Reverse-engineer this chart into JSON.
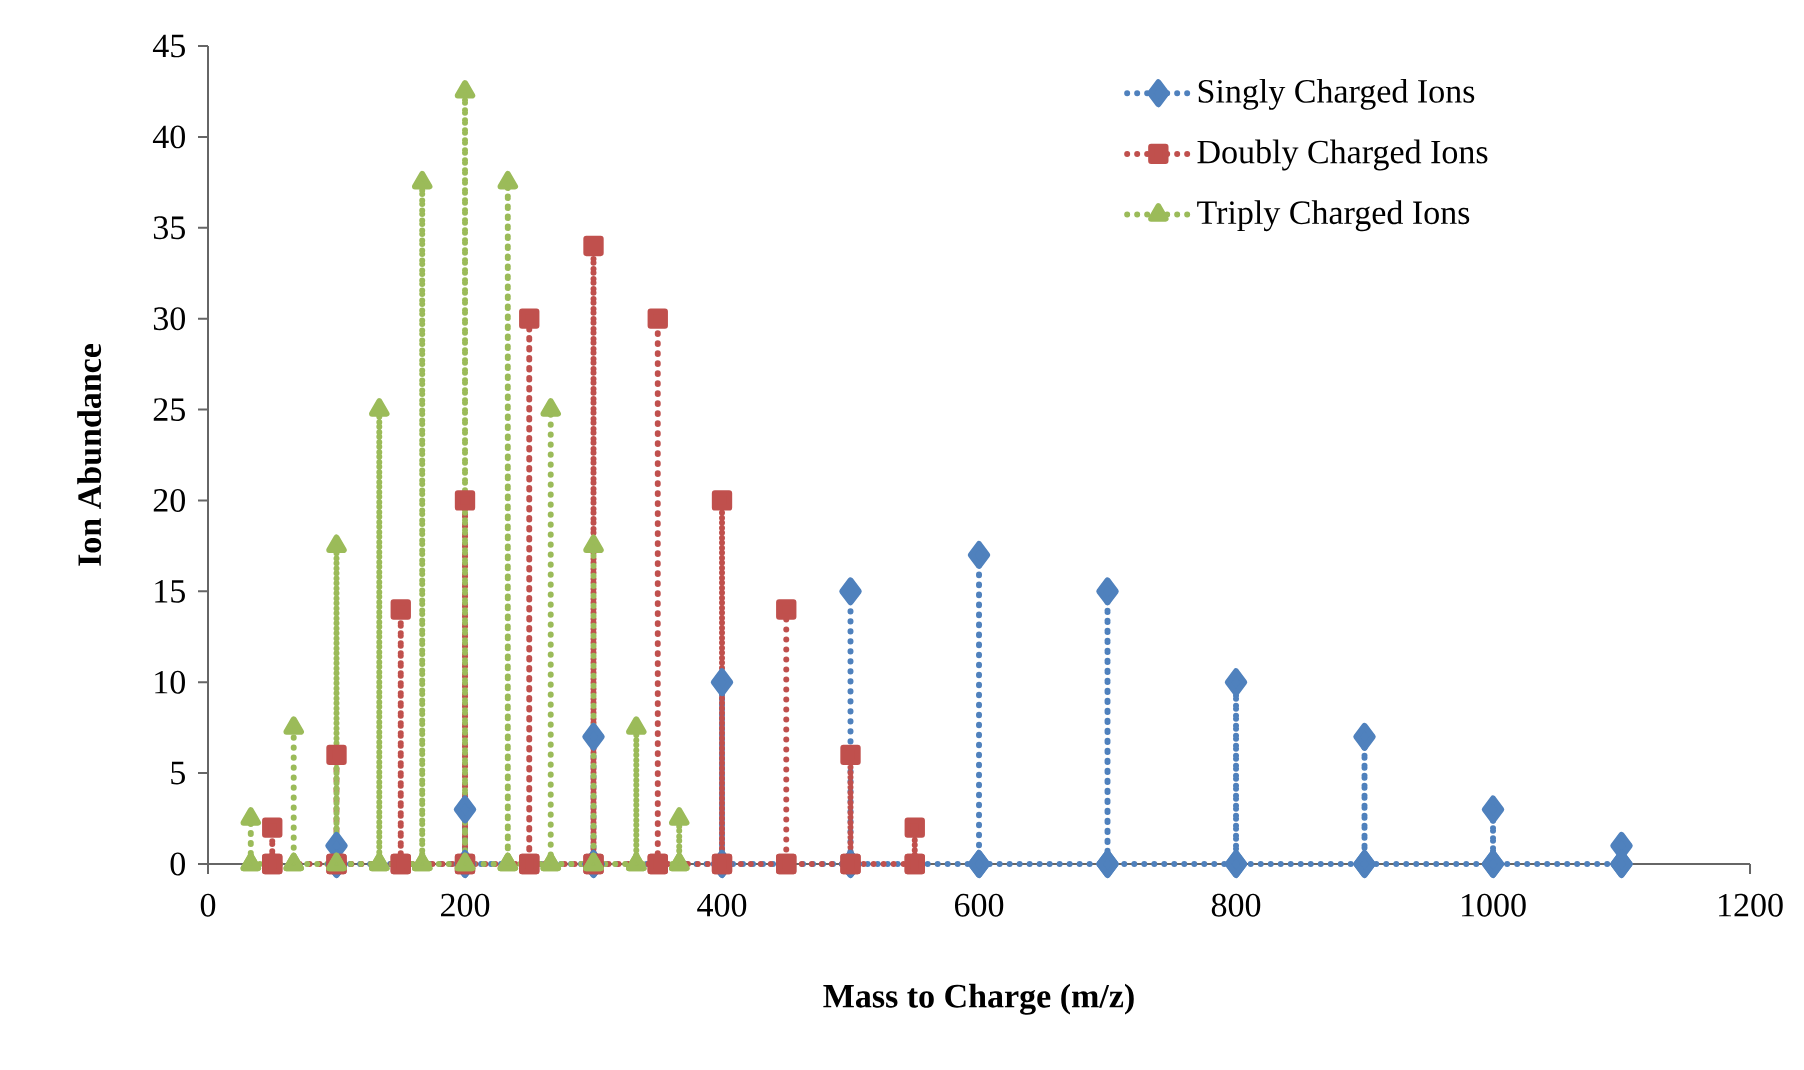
{
  "chart_data": {
    "type": "line",
    "xlabel": "Mass to Charge (m/z)",
    "ylabel": "Ion Abundance",
    "xlim": [
      0,
      1200
    ],
    "xticks": [
      0,
      200,
      400,
      600,
      800,
      1000,
      1200
    ],
    "ylim": [
      0,
      45
    ],
    "yticks": [
      0,
      5,
      10,
      15,
      20,
      25,
      30,
      35,
      40,
      45
    ],
    "grid": false,
    "legend": "top right",
    "line_style": "dotted",
    "series": [
      {
        "name": "Singly Charged Ions",
        "color": "#4f81bd",
        "marker": "diamond",
        "x": [
          100,
          100,
          100,
          200,
          200,
          200,
          300,
          300,
          300,
          400,
          400,
          400,
          500,
          500,
          500,
          600,
          600,
          600,
          700,
          700,
          700,
          800,
          800,
          800,
          900,
          900,
          900,
          1000,
          1000,
          1000,
          1100,
          1100,
          1100
        ],
        "values": [
          0,
          1,
          0,
          0,
          3,
          0,
          0,
          7,
          0,
          0,
          10,
          0,
          0,
          15,
          0,
          0,
          17,
          0,
          0,
          15,
          0,
          0,
          10,
          0,
          0,
          7,
          0,
          0,
          3,
          0,
          0,
          1,
          0
        ]
      },
      {
        "name": "Doubly Charged Ions",
        "color": "#c0504d",
        "marker": "square",
        "x": [
          50,
          50,
          50,
          100,
          100,
          100,
          150,
          150,
          150,
          200,
          200,
          200,
          250,
          250,
          250,
          300,
          300,
          300,
          350,
          350,
          350,
          400,
          400,
          400,
          450,
          450,
          450,
          500,
          500,
          500,
          550,
          550,
          550
        ],
        "values": [
          0,
          2,
          0,
          0,
          6,
          0,
          0,
          14,
          0,
          0,
          20,
          0,
          0,
          30,
          0,
          0,
          34,
          0,
          0,
          30,
          0,
          0,
          20,
          0,
          0,
          14,
          0,
          0,
          6,
          0,
          0,
          2,
          0
        ]
      },
      {
        "name": "Triply Charged Ions",
        "color": "#9bbb59",
        "marker": "triangle",
        "x": [
          33.3,
          33.3,
          33.3,
          66.7,
          66.7,
          66.7,
          100,
          100,
          100,
          133.3,
          133.3,
          133.3,
          166.7,
          166.7,
          166.7,
          200,
          200,
          200,
          233.3,
          233.3,
          233.3,
          266.7,
          266.7,
          266.7,
          300,
          300,
          300,
          333.3,
          333.3,
          333.3,
          366.7,
          366.7,
          366.7
        ],
        "values": [
          0,
          2.5,
          0,
          0,
          7.5,
          0,
          0,
          17.5,
          0,
          0,
          25,
          0,
          0,
          37.5,
          0,
          0,
          42.5,
          0,
          0,
          37.5,
          0,
          0,
          25,
          0,
          0,
          17.5,
          0,
          0,
          7.5,
          0,
          0,
          2.5,
          0
        ]
      }
    ]
  }
}
